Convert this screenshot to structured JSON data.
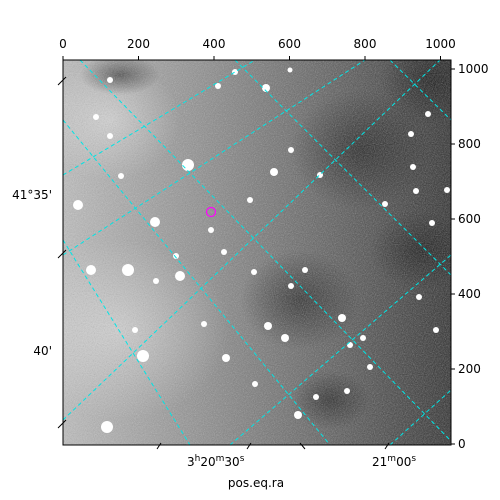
{
  "figure": {
    "x_axis_label": "pos.eq.ra",
    "top_ticks": [
      "0",
      "200",
      "400",
      "600",
      "800",
      "1000"
    ],
    "right_ticks": [
      "0",
      "200",
      "400",
      "600",
      "800",
      "1000"
    ],
    "left_ticks": [
      "41°35'",
      "40'"
    ],
    "bottom_ticks": [
      {
        "main": "3",
        "sup1": "h",
        "mid": "20",
        "sup2": "m",
        "end": "30",
        "sup3": "s"
      },
      {
        "main": "21",
        "sup1": "m",
        "mid": "00",
        "sup2": "s",
        "end": "",
        "sup3": ""
      }
    ]
  },
  "colors": {
    "grid": "#00e5e5",
    "marker": "#ff00ff",
    "frame": "#000000"
  }
}
